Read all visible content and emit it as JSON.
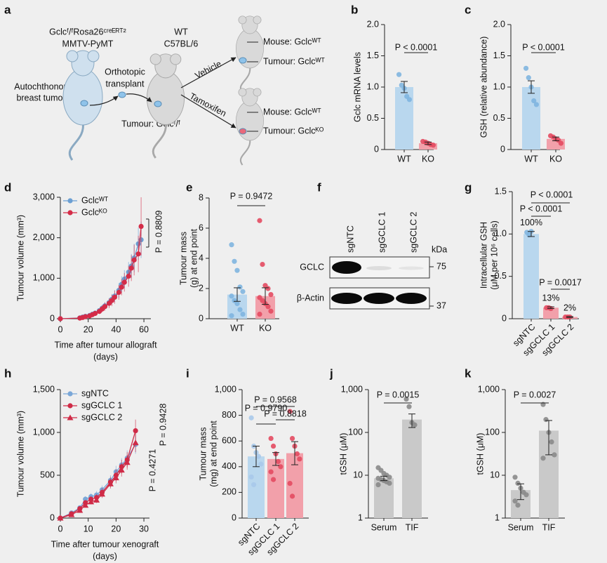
{
  "diagram": {
    "label": "a",
    "donor": [
      "Gclcᶠ/ᶠRosa26ᶜʳᵉᴱᴿᵀ²",
      "MMTV-PyMT"
    ],
    "donor_tumour": [
      "Autochthonous",
      "breast tumour"
    ],
    "step": [
      "Orthotopic",
      "transplant"
    ],
    "host": [
      "WT",
      "C57BL/6"
    ],
    "host_tumour": "Tumour: Gclcᶠ/ᶠ",
    "treatments": [
      "Vehicle",
      "Tamoxifen"
    ],
    "outcomes": [
      [
        "Mouse: Gclcᵂᵀ",
        "Tumour: Gclcᵂᵀ"
      ],
      [
        "Mouse: Gclcᵂᵀ",
        "Tumour: Gclcᴷᴼ"
      ]
    ]
  },
  "blot": {
    "label": "f",
    "lanes": [
      "sgNTC",
      "sgGCLC 1",
      "sgGCLC 2"
    ],
    "unit": "kDa",
    "rows": [
      {
        "name": "GCLC",
        "marker": "75"
      },
      {
        "name": "β-Actin",
        "marker": "37"
      }
    ]
  },
  "chart_data": [
    {
      "label": "b",
      "type": "bar",
      "ylabel": "Gclc mRNA levels",
      "categories": [
        "WT",
        "KO"
      ],
      "values": [
        1.0,
        0.1
      ],
      "errors": [
        0.09,
        0.02
      ],
      "points": [
        [
          1.2,
          1.03,
          0.98,
          0.85,
          0.8
        ],
        [
          0.13,
          0.12,
          0.1,
          0.08,
          0.07
        ]
      ],
      "colors": [
        "#b9d7ee",
        "#f2a0aa"
      ],
      "point_colors": [
        "#7fb5df",
        "#e34a60"
      ],
      "ylim": [
        0,
        2
      ],
      "yticks": [
        0,
        0.5,
        {
          "value": 1,
          "label": "1.0"
        },
        1.5,
        {
          "value": 2,
          "label": "2.0"
        }
      ],
      "annotations": [
        "P < 0.0001"
      ]
    },
    {
      "label": "c",
      "type": "bar",
      "ylabel": "GSH (relative abundance)",
      "categories": [
        "WT",
        "KO"
      ],
      "values": [
        1.0,
        0.17
      ],
      "errors": [
        0.1,
        0.03
      ],
      "points": [
        [
          1.3,
          1.15,
          1.0,
          0.78,
          0.72
        ],
        [
          0.22,
          0.2,
          0.17,
          0.15,
          0.1
        ]
      ],
      "colors": [
        "#b9d7ee",
        "#f2a0aa"
      ],
      "point_colors": [
        "#7fb5df",
        "#e34a60"
      ],
      "ylim": [
        0,
        2
      ],
      "yticks": [
        0,
        0.5,
        {
          "value": 1,
          "label": "1.0"
        },
        1.5,
        {
          "value": 2,
          "label": "2.0"
        }
      ],
      "annotations": [
        "P < 0.0001"
      ]
    },
    {
      "label": "d",
      "type": "line",
      "ylabel": "Tumour volume (mm³)",
      "xlabel": [
        "Time after tumour allograft",
        "(days)"
      ],
      "x": [
        0,
        14,
        16,
        18,
        21,
        23,
        25,
        28,
        30,
        32,
        35,
        37,
        39,
        42,
        44,
        46,
        49,
        51,
        53,
        56,
        58
      ],
      "series": [
        {
          "name": "Gclcᵂᵀ",
          "color": "#6b9fd3",
          "marker": "circle",
          "values": [
            0,
            20,
            40,
            60,
            80,
            110,
            140,
            200,
            260,
            320,
            400,
            480,
            560,
            700,
            850,
            980,
            1150,
            1300,
            1500,
            1850,
            1950
          ],
          "errors": [
            0,
            10,
            15,
            20,
            30,
            40,
            50,
            60,
            80,
            90,
            110,
            130,
            150,
            180,
            200,
            220,
            250,
            300,
            350,
            400,
            450
          ]
        },
        {
          "name": "Gclcᴷᴼ",
          "color": "#d42c48",
          "marker": "circle",
          "values": [
            0,
            15,
            30,
            50,
            70,
            100,
            130,
            180,
            240,
            300,
            380,
            450,
            530,
            650,
            780,
            900,
            1050,
            1250,
            1450,
            1600,
            2280
          ],
          "errors": [
            0,
            10,
            15,
            20,
            30,
            40,
            50,
            60,
            80,
            100,
            120,
            140,
            160,
            180,
            200,
            230,
            260,
            320,
            380,
            450,
            720
          ]
        }
      ],
      "xlim": [
        0,
        65
      ],
      "xticks": [
        0,
        20,
        40,
        60
      ],
      "ylim": [
        0,
        3000
      ],
      "yticks": [
        0,
        {
          "value": 1000,
          "label": "1,000"
        },
        {
          "value": 2000,
          "label": "2,000"
        },
        {
          "value": 3000,
          "label": "3,000"
        }
      ],
      "annotations": [
        "P = 0.8809"
      ]
    },
    {
      "label": "e",
      "type": "bar",
      "ylabel": [
        "Tumour mass",
        "(g) at end point"
      ],
      "categories": [
        "WT",
        "KO"
      ],
      "values": [
        1.6,
        1.5
      ],
      "errors": [
        0.45,
        0.55
      ],
      "points": [
        [
          4.9,
          3.8,
          3.2,
          2.1,
          1.8,
          1.5,
          1.2,
          1.0,
          0.6,
          0.3,
          0.2
        ],
        [
          6.5,
          3.6,
          2.2,
          2.0,
          1.6,
          1.4,
          1.2,
          1.0,
          0.8,
          0.5,
          0.3
        ]
      ],
      "colors": [
        "#b9d7ee",
        "#f2a0aa"
      ],
      "point_colors": [
        "#7fb5df",
        "#e34a60"
      ],
      "ylim": [
        0,
        8
      ],
      "yticks": [
        0,
        2,
        4,
        6,
        8
      ],
      "annotations": [
        "P = 0.9472"
      ]
    },
    {
      "label": "g",
      "type": "bar",
      "ylabel": [
        "Intracellular GSH",
        "(μM per 10⁶ cells)"
      ],
      "categories": [
        "sgNTC",
        "sgGCLC 1",
        "sgGCLC 2"
      ],
      "values": [
        1.0,
        0.13,
        0.02
      ],
      "value_labels": [
        "100%",
        "13%",
        "2%"
      ],
      "errors": [
        0.03,
        0.01,
        0.005
      ],
      "points": [
        [
          1.02,
          0.99,
          1.03
        ],
        [
          0.13,
          0.13,
          0.12
        ],
        [
          0.02,
          0.02,
          0.02
        ]
      ],
      "colors": [
        "#b9d7ee",
        "#f2a0aa",
        "#f2a0aa"
      ],
      "point_colors": [
        "#7fb5df",
        "#e34a60",
        "#e34a60"
      ],
      "ylim": [
        0,
        1.5
      ],
      "yticks": [
        0,
        0.5,
        {
          "value": 1,
          "label": "1.0"
        },
        1.5
      ],
      "annotations": [
        "P < 0.0001",
        "P < 0.0001",
        "P = 0.0017"
      ]
    },
    {
      "label": "h",
      "type": "line",
      "ylabel": "Tumour volume (mm³)",
      "xlabel": [
        "Time after tumour xenograft",
        "(days)"
      ],
      "x": [
        0,
        4,
        7,
        9,
        11,
        13,
        15,
        18,
        20,
        22,
        24,
        27
      ],
      "series": [
        {
          "name": "sgNTC",
          "color": "#7aa7d8",
          "marker": "circle",
          "values": [
            0,
            60,
            120,
            220,
            250,
            270,
            330,
            440,
            540,
            620,
            700,
            860
          ],
          "errors": [
            0,
            15,
            25,
            35,
            40,
            45,
            50,
            60,
            70,
            80,
            90,
            110
          ]
        },
        {
          "name": "sgGCLC 1",
          "color": "#cf2b47",
          "marker": "circle",
          "values": [
            0,
            50,
            110,
            180,
            220,
            240,
            300,
            420,
            500,
            600,
            680,
            1020
          ],
          "errors": [
            0,
            15,
            20,
            30,
            35,
            40,
            50,
            60,
            70,
            80,
            90,
            130
          ]
        },
        {
          "name": "sgGCLC 2",
          "color": "#cf2b47",
          "marker": "triangle",
          "values": [
            0,
            40,
            90,
            150,
            190,
            210,
            280,
            400,
            470,
            560,
            650,
            880
          ],
          "errors": [
            0,
            10,
            20,
            25,
            30,
            35,
            45,
            55,
            65,
            75,
            85,
            110
          ]
        }
      ],
      "xlim": [
        0,
        32
      ],
      "xticks": [
        0,
        10,
        20,
        30
      ],
      "ylim": [
        0,
        1500
      ],
      "yticks": [
        0,
        500,
        {
          "value": 1000,
          "label": "1,000"
        },
        {
          "value": 1500,
          "label": "1,500"
        }
      ],
      "annotations": [
        "P = 0.4271",
        "P = 0.9428"
      ]
    },
    {
      "label": "i",
      "type": "bar",
      "ylabel": [
        "Tumour mass",
        "(mg) at end point"
      ],
      "categories": [
        "sgNTC",
        "sgGCLC 1",
        "sgGCLC 2"
      ],
      "values": [
        480,
        460,
        505
      ],
      "errors": [
        80,
        50,
        90
      ],
      "points": [
        [
          780,
          560,
          510,
          480,
          420,
          320,
          260
        ],
        [
          620,
          560,
          500,
          440,
          400,
          360,
          300
        ],
        [
          830,
          620,
          560,
          500,
          460,
          270,
          170
        ]
      ],
      "colors": [
        "#b9d7ee",
        "#f2a0aa",
        "#f2a0aa"
      ],
      "point_colors": [
        "#a8c9ea",
        "#e34a60",
        "#e34a60"
      ],
      "ylim": [
        0,
        1000
      ],
      "yticks": [
        0,
        200,
        400,
        600,
        800,
        {
          "value": 1000,
          "label": "1,000"
        }
      ],
      "annotations": [
        "P = 0.9568",
        "P = 0.8818",
        "P = 0.9790"
      ]
    },
    {
      "label": "j",
      "type": "bar",
      "log": true,
      "ylabel": "tGSH (μM)",
      "categories": [
        "Serum",
        "TIF"
      ],
      "values": [
        8.5,
        200
      ],
      "errors": [
        1,
        70
      ],
      "points": [
        [
          15,
          13,
          11,
          10,
          9,
          8.5,
          8,
          7.5,
          7,
          6.5,
          6
        ],
        [
          600,
          400,
          170,
          150
        ]
      ],
      "colors": [
        "#c9c9c9",
        "#c9c9c9"
      ],
      "point_colors": [
        "#8a8a8a",
        "#8a8a8a"
      ],
      "ylim": [
        1,
        1000
      ],
      "yticks": [
        1,
        10,
        100,
        {
          "value": 1000,
          "label": "1,000"
        }
      ],
      "annotations": [
        "P = 0.0015"
      ]
    },
    {
      "label": "k",
      "type": "bar",
      "log": true,
      "ylabel": "tGSH (μM)",
      "categories": [
        "Serum",
        "TIF"
      ],
      "values": [
        4.5,
        110
      ],
      "errors": [
        1.8,
        80
      ],
      "points": [
        [
          9,
          6.5,
          5,
          4,
          3.5,
          2.5,
          2
        ],
        [
          450,
          200,
          100,
          60,
          30,
          25
        ]
      ],
      "colors": [
        "#c9c9c9",
        "#c9c9c9"
      ],
      "point_colors": [
        "#8a8a8a",
        "#8a8a8a"
      ],
      "ylim": [
        1,
        1000
      ],
      "yticks": [
        1,
        10,
        100,
        {
          "value": 1000,
          "label": "1,000"
        }
      ],
      "annotations": [
        "P = 0.0027"
      ]
    }
  ]
}
